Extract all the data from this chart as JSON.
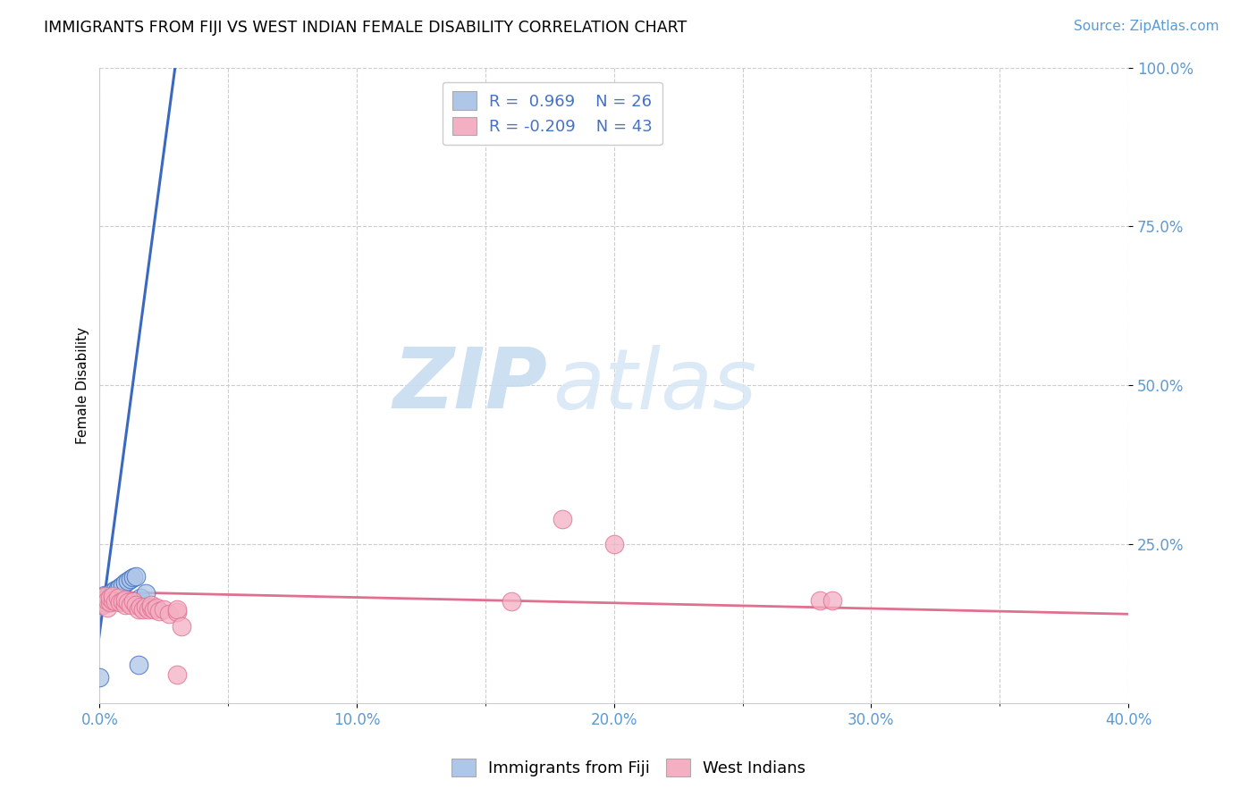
{
  "title": "IMMIGRANTS FROM FIJI VS WEST INDIAN FEMALE DISABILITY CORRELATION CHART",
  "source": "Source: ZipAtlas.com",
  "ylabel": "Female Disability",
  "xlim": [
    0.0,
    0.4
  ],
  "ylim": [
    0.0,
    1.0
  ],
  "xtick_labels": [
    "0.0%",
    "",
    "10.0%",
    "",
    "20.0%",
    "",
    "30.0%",
    "",
    "40.0%"
  ],
  "xtick_vals": [
    0.0,
    0.05,
    0.1,
    0.15,
    0.2,
    0.25,
    0.3,
    0.35,
    0.4
  ],
  "ytick_labels": [
    "100.0%",
    "75.0%",
    "50.0%",
    "25.0%"
  ],
  "ytick_vals": [
    1.0,
    0.75,
    0.5,
    0.25
  ],
  "fiji_R": 0.969,
  "fiji_N": 26,
  "westindian_R": -0.209,
  "westindian_N": 43,
  "fiji_color": "#aec6e8",
  "westindian_color": "#f4afc3",
  "fiji_line_color": "#3a6abf",
  "westindian_line_color": "#e07090",
  "legend_label_fiji": "Immigrants from Fiji",
  "legend_label_westindian": "West Indians",
  "watermark_zip": "ZIP",
  "watermark_atlas": "atlas",
  "fiji_x": [
    0.001,
    0.001,
    0.001,
    0.002,
    0.002,
    0.002,
    0.003,
    0.003,
    0.004,
    0.004,
    0.005,
    0.005,
    0.006,
    0.007,
    0.008,
    0.009,
    0.01,
    0.011,
    0.012,
    0.013,
    0.014,
    0.015,
    0.016,
    0.016,
    0.0,
    0.018
  ],
  "fiji_y": [
    0.155,
    0.16,
    0.165,
    0.16,
    0.163,
    0.17,
    0.162,
    0.168,
    0.165,
    0.172,
    0.17,
    0.175,
    0.178,
    0.18,
    0.183,
    0.186,
    0.19,
    0.192,
    0.195,
    0.198,
    0.2,
    0.06,
    0.158,
    0.165,
    0.04,
    0.172
  ],
  "westindian_x": [
    0.0,
    0.001,
    0.001,
    0.002,
    0.002,
    0.002,
    0.003,
    0.003,
    0.004,
    0.004,
    0.005,
    0.005,
    0.006,
    0.007,
    0.008,
    0.009,
    0.01,
    0.01,
    0.011,
    0.012,
    0.013,
    0.014,
    0.015,
    0.016,
    0.017,
    0.018,
    0.019,
    0.02,
    0.02,
    0.021,
    0.022,
    0.023,
    0.025,
    0.027,
    0.03,
    0.03,
    0.03,
    0.032,
    0.16,
    0.28,
    0.285,
    0.18,
    0.2
  ],
  "westindian_y": [
    0.16,
    0.155,
    0.165,
    0.158,
    0.163,
    0.168,
    0.15,
    0.162,
    0.158,
    0.165,
    0.162,
    0.168,
    0.16,
    0.165,
    0.158,
    0.16,
    0.155,
    0.163,
    0.158,
    0.155,
    0.16,
    0.155,
    0.148,
    0.152,
    0.148,
    0.152,
    0.148,
    0.15,
    0.155,
    0.148,
    0.15,
    0.145,
    0.148,
    0.14,
    0.143,
    0.148,
    0.045,
    0.12,
    0.16,
    0.162,
    0.162,
    0.29,
    0.25
  ],
  "fiji_trend_x": [
    -0.002,
    0.03
  ],
  "fiji_trend_y": [
    0.05,
    1.02
  ],
  "wi_trend_x": [
    0.0,
    0.4
  ],
  "wi_trend_y": [
    0.175,
    0.14
  ]
}
